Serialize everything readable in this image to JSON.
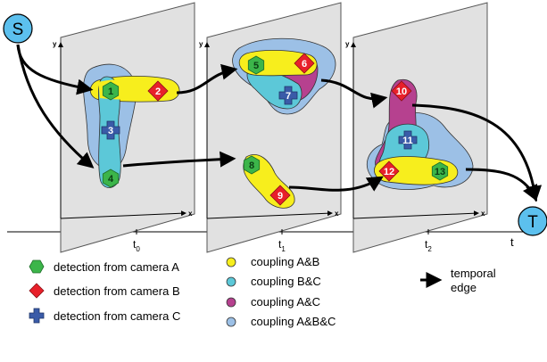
{
  "source_node": "S",
  "sink_node": "T",
  "axis": {
    "x": "x",
    "y": "y",
    "time": "t"
  },
  "frames": [
    {
      "time_base": "t",
      "time_sub": "0"
    },
    {
      "time_base": "t",
      "time_sub": "1"
    },
    {
      "time_base": "t",
      "time_sub": "2"
    }
  ],
  "detections": [
    {
      "id": "1",
      "camera": "A"
    },
    {
      "id": "2",
      "camera": "B"
    },
    {
      "id": "3",
      "camera": "C"
    },
    {
      "id": "4",
      "camera": "A"
    },
    {
      "id": "5",
      "camera": "A"
    },
    {
      "id": "6",
      "camera": "B"
    },
    {
      "id": "7",
      "camera": "C"
    },
    {
      "id": "8",
      "camera": "A"
    },
    {
      "id": "9",
      "camera": "B"
    },
    {
      "id": "10",
      "camera": "B"
    },
    {
      "id": "11",
      "camera": "C"
    },
    {
      "id": "12",
      "camera": "B"
    },
    {
      "id": "13",
      "camera": "A"
    }
  ],
  "legend": {
    "detections": [
      {
        "label": "detection from camera A",
        "shape": "green-hexagon-icon",
        "color": "#3cb54a"
      },
      {
        "label": "detection from camera B",
        "shape": "red-diamond-icon",
        "color": "#e8202a"
      },
      {
        "label": "detection from camera C",
        "shape": "blue-cross-icon",
        "color": "#3a5ba8"
      }
    ],
    "couplings": [
      {
        "label": "coupling A&B",
        "color": "#f7ee1d"
      },
      {
        "label": "coupling B&C",
        "color": "#5cc8d8"
      },
      {
        "label": "coupling A&C",
        "color": "#b6418f"
      },
      {
        "label": "coupling A&B&C",
        "color": "#9cc0e6"
      }
    ],
    "edge": {
      "label_line1": "temporal",
      "label_line2": "edge"
    }
  },
  "colors": {
    "frame_fill": "#e1e1e1",
    "camera_a": "#3cb54a",
    "camera_b": "#e8202a",
    "camera_c": "#3a5ba8",
    "coupling_ab": "#f7ee1d",
    "coupling_bc": "#5cc8d8",
    "coupling_ac": "#b6418f",
    "coupling_abc": "#9cc0e6",
    "node_fill": "#5cc0ee"
  }
}
